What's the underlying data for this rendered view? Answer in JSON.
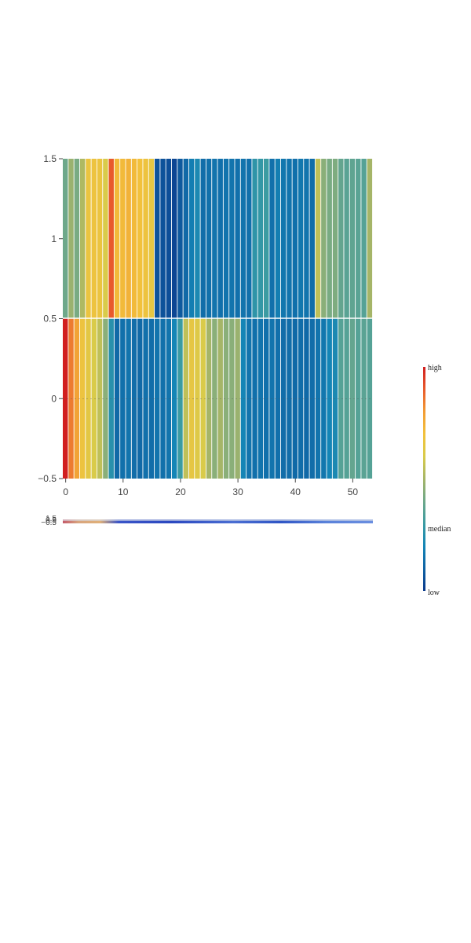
{
  "chart_data": {
    "type": "heatmap",
    "title": "",
    "xlabel": "",
    "ylabel": "",
    "x_range": [
      -0.5,
      53.5
    ],
    "y_range": [
      -0.5,
      1.5
    ],
    "x_ticks": [
      0,
      10,
      20,
      30,
      40,
      50
    ],
    "x_tick_labels": [
      "0",
      "10",
      "20",
      "30",
      "40",
      "50"
    ],
    "y_ticks": [
      -0.5,
      0,
      0.5,
      1,
      1.5
    ],
    "y_tick_labels": [
      "−0.5",
      "0",
      "0.5",
      "1",
      "1.5"
    ],
    "rows": [
      {
        "y": 0,
        "values": [
          1.0,
          0.85,
          0.78,
          0.68,
          0.64,
          0.6,
          0.55,
          0.45,
          0.25,
          0.12,
          0.14,
          0.15,
          0.13,
          0.12,
          0.14,
          0.13,
          0.15,
          0.14,
          0.15,
          0.2,
          0.3,
          0.55,
          0.65,
          0.62,
          0.6,
          0.5,
          0.45,
          0.5,
          0.45,
          0.45,
          0.48,
          0.2,
          0.15,
          0.14,
          0.15,
          0.14,
          0.15,
          0.14,
          0.13,
          0.13,
          0.12,
          0.13,
          0.12,
          0.13,
          0.15,
          0.16,
          0.2,
          0.22,
          0.35,
          0.35,
          0.38,
          0.35,
          0.36,
          0.35
        ]
      },
      {
        "y": 1,
        "values": [
          0.4,
          0.48,
          0.42,
          0.52,
          0.67,
          0.68,
          0.67,
          0.6,
          0.9,
          0.72,
          0.72,
          0.74,
          0.72,
          0.7,
          0.68,
          0.65,
          0.06,
          0.06,
          0.05,
          0.03,
          0.08,
          0.12,
          0.18,
          0.22,
          0.13,
          0.14,
          0.15,
          0.14,
          0.15,
          0.15,
          0.14,
          0.15,
          0.14,
          0.27,
          0.28,
          0.3,
          0.14,
          0.18,
          0.16,
          0.15,
          0.14,
          0.16,
          0.15,
          0.13,
          0.55,
          0.45,
          0.42,
          0.43,
          0.38,
          0.36,
          0.37,
          0.36,
          0.35,
          0.5
        ]
      }
    ],
    "colorscale": [
      "#0b3a8c",
      "#0f62a3",
      "#1485b6",
      "#3b9ba2",
      "#6ea88a",
      "#a5b568",
      "#d9cb4a",
      "#f2c13c",
      "#f29c34",
      "#e85a2c",
      "#d11f1f"
    ],
    "colorbar": {
      "labels": [
        "high",
        "median",
        "low"
      ]
    },
    "minimap": {
      "y_labels": [
        "1.5",
        "0.5",
        "−0.5"
      ]
    }
  }
}
